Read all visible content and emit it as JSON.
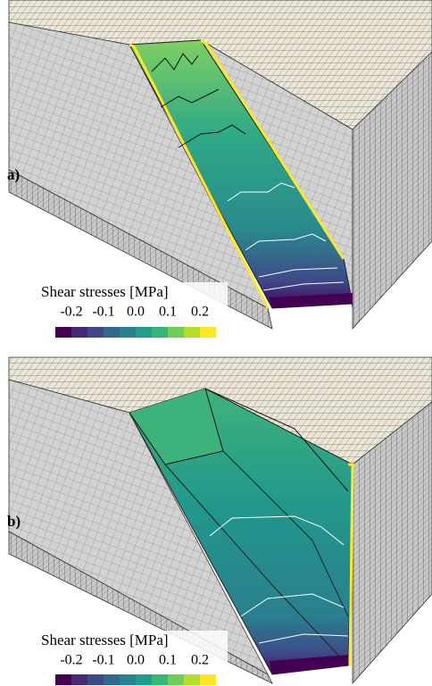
{
  "panels": [
    {
      "label": "a)",
      "colorbar": {
        "title": "Shear stresses [MPa]",
        "lim": [
          -0.25,
          0.25
        ],
        "ticks": [
          -0.2,
          -0.1,
          {
            "value": 0,
            "label": "0.0"
          },
          0.1,
          0.2
        ],
        "colors": [
          "#440154",
          "#482878",
          "#3e4989",
          "#31688e",
          "#26828e",
          "#1f9e89",
          "#35b779",
          "#6ece58",
          "#b5de2b",
          "#fde725"
        ]
      }
    },
    {
      "label": "b)",
      "colorbar": {
        "title": "Shear stresses [MPa]",
        "lim": [
          -0.25,
          0.25
        ],
        "ticks": [
          -0.2,
          -0.1,
          {
            "value": 0,
            "label": "0.0"
          },
          0.1,
          0.2
        ],
        "colors": [
          "#440154",
          "#482878",
          "#3e4989",
          "#31688e",
          "#26828e",
          "#1f9e89",
          "#35b779",
          "#6ece58",
          "#b5de2b",
          "#fde725"
        ]
      }
    }
  ]
}
